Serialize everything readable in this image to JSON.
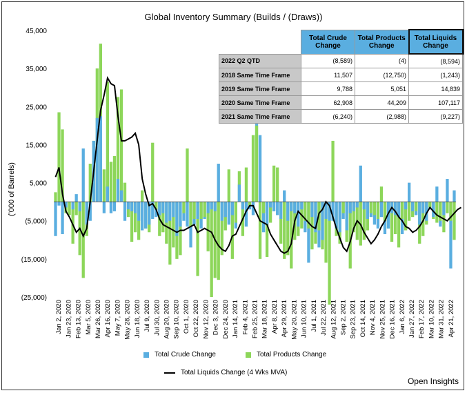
{
  "chart_data": {
    "type": "bar",
    "title": "Global Inventory Summary (Builds / (Draws))",
    "ylabel": "('000 of Barrels)",
    "ylim": [
      -25000,
      45000
    ],
    "y_ticks": [
      "45,000",
      "35,000",
      "25,000",
      "15,000",
      "5,000",
      "(5,000)",
      "(15,000)",
      "(25,000)"
    ],
    "x_tick_labels": [
      "Jan 2, 2020",
      "Jan 23, 2020",
      "Feb 13, 2020",
      "Mar 5, 2020",
      "Mar 26, 2020",
      "Apr 16, 2020",
      "May 7, 2020",
      "May 28, 2020",
      "Jun 18, 2020",
      "Jul 9, 2020",
      "Jul 30, 2020",
      "Aug 20, 2020",
      "Sep 10, 2020",
      "Oct 1, 2020",
      "Oct 22, 2020",
      "Nov 12, 2020",
      "Dec 3, 2020",
      "Dec 24, 2020",
      "Jan 14, 2021",
      "Feb 4, 2021",
      "Feb 25, 2021",
      "Mar 18, 2021",
      "Apr 8, 2021",
      "Apr 29, 2021",
      "May 20, 2021",
      "Jun 10, 2021",
      "Jul 1, 2021",
      "Jul 22, 2021",
      "Aug 12, 2021",
      "Sep 2, 2021",
      "Sep 23, 2021",
      "Oct 14, 2021",
      "Nov 4, 2021",
      "Nov 25, 2021",
      "Dec 16, 2021",
      "Jan 6, 2022",
      "Jan 27, 2022",
      "Feb 17, 2022",
      "Mar 10, 2022",
      "Mar 31, 2022",
      "Apr 21, 2022"
    ],
    "series": [
      {
        "name": "Total Crude Change",
        "color": "#5aaee0",
        "values": [
          -9000,
          -1000,
          -8500,
          -1500,
          0,
          -2000,
          2000,
          -2500,
          14000,
          -6000,
          -5000,
          16000,
          22000,
          22500,
          -3000,
          4000,
          -3000,
          -2500,
          6000,
          3000,
          -5000,
          -2000,
          -2500,
          -3000,
          -5000,
          -7500,
          -7000,
          -6000,
          -4500,
          -4000,
          -3500,
          -3000,
          -5500,
          -5000,
          -4000,
          -9000,
          -6500,
          -5000,
          -6500,
          -12000,
          -6000,
          -4500,
          -7000,
          -4500,
          -3000,
          -2000,
          -2500,
          10000,
          -5000,
          -4000,
          -6000,
          -3500,
          -7000,
          4500,
          -2000,
          -6500,
          -2000,
          -3500,
          20500,
          17500,
          -8000,
          -6000,
          -1500,
          -2500,
          -3500,
          -4500,
          3000,
          -5000,
          -2500,
          -3000,
          -6500,
          -2000,
          -8000,
          -16000,
          -4000,
          -8000,
          -12000,
          -10000,
          -4500,
          -5000,
          -5000,
          -7000,
          -8000,
          -4500,
          -7500,
          -3000,
          -2500,
          -1500,
          9500,
          -2000,
          -4500,
          -4000,
          -6000,
          -7000,
          -4000,
          -8500,
          -7000,
          -3000,
          -3500,
          -4000,
          -8500,
          -2000,
          5000,
          -2500,
          -3500,
          -6000,
          -3000,
          -5000,
          -2000,
          -4000,
          4000,
          -6500,
          -3500,
          6000,
          -17500,
          3000
        ],
        "_unused": null
      },
      {
        "name": "Total Products Change",
        "color": "#8dd65a",
        "values": [
          2500,
          23500,
          19000,
          -3000,
          -3500,
          -11000,
          -3500,
          -14000,
          -20000,
          -9000,
          10000,
          16000,
          35000,
          41500,
          8500,
          31500,
          10500,
          12000,
          27500,
          29500,
          5000,
          -4000,
          -10500,
          -8000,
          -10000,
          3000,
          -7000,
          -8000,
          15500,
          -2000,
          -9000,
          -8000,
          -11000,
          -16500,
          -12000,
          -15000,
          -14000,
          -3000,
          14000,
          -6500,
          -4500,
          -19500,
          -4500,
          -4000,
          -13000,
          -25000,
          -20000,
          -20500,
          -14000,
          -7500,
          8500,
          -15000,
          -5500,
          8000,
          -9000,
          9000,
          -1000,
          17500,
          20000,
          -15000,
          -3000,
          -14500,
          -5500,
          9500,
          9000,
          -11000,
          -15000,
          -14000,
          -17500,
          -10000,
          -9000,
          -7000,
          -5000,
          -7000,
          -12500,
          -11000,
          -7500,
          -12500,
          -16000,
          -27000,
          16000,
          -9000,
          -11000,
          -3000,
          -10500,
          -17500,
          -8000,
          -10000,
          -11500,
          -10000,
          -7500,
          -3000,
          -3500,
          -4500,
          4000,
          -5000,
          -7000,
          -10500,
          -8500,
          -12000,
          -4500,
          -7500,
          -5000,
          -4000,
          -2500,
          -11000,
          -9000,
          -6000,
          -1500,
          -4500,
          -5500,
          -5000,
          -8000,
          -3000,
          -5000,
          -10000,
          -9000,
          -5500
        ],
        "_unused": null
      },
      {
        "name": "Total Liquids Change (4 Wks MVA)",
        "color": "#000000",
        "values": [
          6500,
          9000,
          2000,
          -2500,
          -4000,
          -6000,
          -8000,
          -7000,
          -9000,
          -7000,
          0,
          8000,
          16000,
          24000,
          28000,
          32500,
          31000,
          30500,
          22500,
          16000,
          16000,
          16500,
          17000,
          18000,
          15000,
          6000,
          2000,
          -1000,
          -500,
          -2000,
          -4500,
          -6000,
          -6500,
          -7000,
          -7500,
          -8000,
          -7500,
          -7500,
          -7000,
          -6500,
          -6000,
          -8000,
          -7500,
          -7000,
          -7500,
          -8000,
          -10000,
          -11500,
          -12500,
          -13000,
          -11500,
          -9000,
          -8500,
          -6500,
          -4500,
          -2500,
          -1000,
          -1000,
          -3000,
          -5000,
          -5500,
          -6000,
          -8500,
          -10000,
          -11500,
          -13000,
          -13500,
          -13000,
          -11000,
          -5000,
          -2500,
          -3500,
          -4500,
          -5500,
          -6500,
          -7000,
          -3000,
          -2000,
          0,
          -1000,
          -4000,
          -7000,
          -9500,
          -12000,
          -13000,
          -10500,
          -7000,
          -5000,
          -6000,
          -8000,
          -9500,
          -11000,
          -10000,
          -8500,
          -6500,
          -5000,
          -3000,
          -1500,
          -2500,
          -4000,
          -5000,
          -6500,
          -7000,
          -8000,
          -7500,
          -6500,
          -5000,
          -3000,
          -1500,
          -2500,
          -3500,
          -4000,
          -4500,
          -5000,
          -4000,
          -3000,
          -2000,
          -1500
        ],
        "_unused": null
      }
    ],
    "legend": [
      "Total Crude Change",
      "Total Products Change",
      "Total Liquids Change (4 Wks MVA)"
    ],
    "table": {
      "columns": [
        "Total Crude Change",
        "Total Products Change",
        "Total Liquids Change"
      ],
      "rows": [
        {
          "label": "2022 Q2 QTD",
          "values": [
            "(8,589)",
            "(4)",
            "(8,594)"
          ]
        },
        {
          "label": "2018 Same Time Frame",
          "values": [
            "11,507",
            "(12,750)",
            "(1,243)"
          ]
        },
        {
          "label": "2019 Same Time Frame",
          "values": [
            "9,788",
            "5,051",
            "14,839"
          ]
        },
        {
          "label": "2020 Same Time Frame",
          "values": [
            "62,908",
            "44,209",
            "107,117"
          ]
        },
        {
          "label": "2021 Same Time Frame",
          "values": [
            "(6,240)",
            "(2,988)",
            "(9,227)"
          ]
        }
      ]
    }
  },
  "credit": "Open Insights"
}
